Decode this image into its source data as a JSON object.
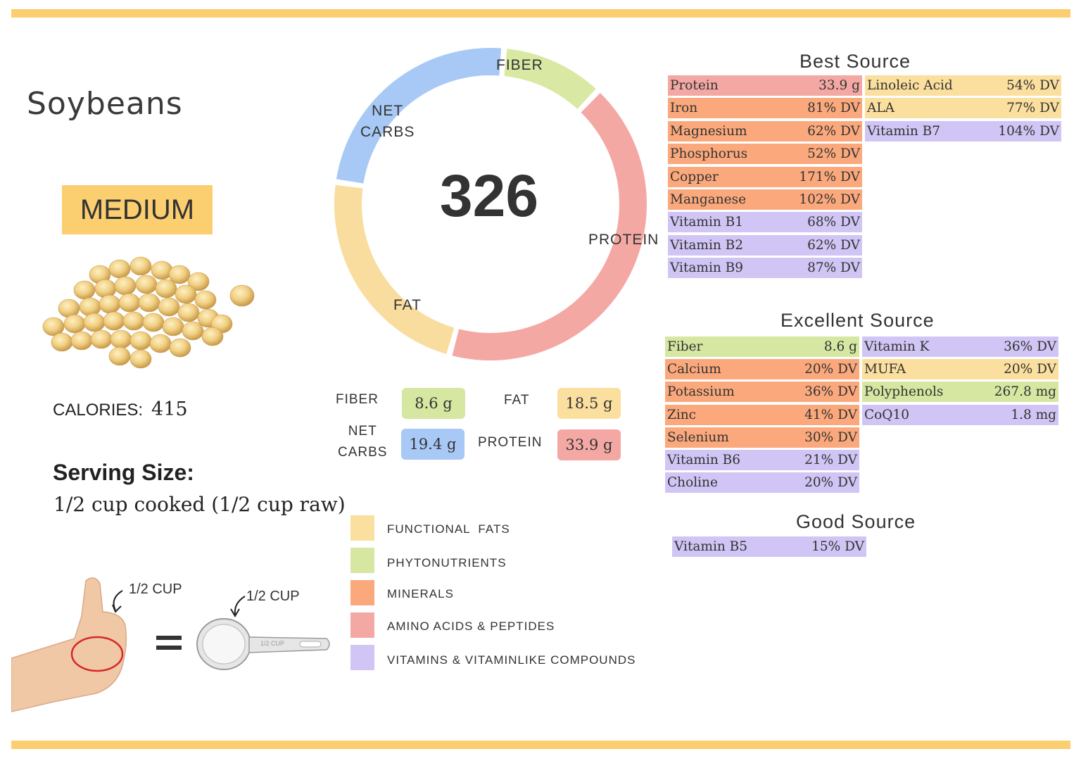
{
  "title": "Soybeans",
  "level_badge": "MEDIUM",
  "calories": {
    "label": "CALORIES:",
    "value": "415"
  },
  "serving": {
    "heading": "Serving Size:",
    "value": "1/2 cup cooked (1/2 cup raw)"
  },
  "hand_measure": {
    "hand_label": "1/2 CUP",
    "cup_label": "1/2 CUP",
    "cup_engraving": "1/2 CUP",
    "equals": "="
  },
  "donut": {
    "center_value": "326",
    "segments": [
      {
        "name": "FIBER",
        "label_lines": [
          "FIBER"
        ],
        "grams": 8.6,
        "color": "#d9e9a4"
      },
      {
        "name": "PROTEIN",
        "label_lines": [
          "PROTEIN"
        ],
        "grams": 33.9,
        "color": "#f4a8a4"
      },
      {
        "name": "FAT",
        "label_lines": [
          "FAT"
        ],
        "grams": 18.5,
        "color": "#f9dd9e"
      },
      {
        "name": "NET CARBS",
        "label_lines": [
          "NET",
          "CARBS"
        ],
        "grams": 19.4,
        "color": "#a8c9f6"
      }
    ]
  },
  "macros": {
    "fiber": {
      "label": "FIBER",
      "value": "8.6 g",
      "color": "#d6e7a2"
    },
    "fat": {
      "label": "FAT",
      "value": "18.5 g",
      "color": "#fbdf9e"
    },
    "net_carbs": {
      "label_line1": "NET",
      "label_line2": "CARBS",
      "value": "19.4 g",
      "color": "#a8c9f6"
    },
    "protein": {
      "label": "PROTEIN",
      "value": "33.9 g",
      "color": "#f4a8a4"
    }
  },
  "legend": [
    {
      "label": "FUNCTIONAL  FATS",
      "color": "#fbdf9e"
    },
    {
      "label": "PHYTONUTRIENTS",
      "color": "#d6e7a2"
    },
    {
      "label": "MINERALS",
      "color": "#fba97c"
    },
    {
      "label": "AMINO ACIDS & PEPTIDES",
      "color": "#f4a8a4"
    },
    {
      "label": "VITAMINS & VITAMINLIKE COMPOUNDS",
      "color": "#d0c5f4"
    }
  ],
  "best_source": {
    "heading": "Best Source",
    "col1": [
      {
        "name": "Protein",
        "value": "33.9 g",
        "category": "red"
      },
      {
        "name": "Iron",
        "value": "81% DV",
        "category": "orange"
      },
      {
        "name": "Magnesium",
        "value": "62% DV",
        "category": "orange"
      },
      {
        "name": "Phosphorus",
        "value": "52% DV",
        "category": "orange"
      },
      {
        "name": "Copper",
        "value": "171% DV",
        "category": "orange"
      },
      {
        "name": "Manganese",
        "value": "102% DV",
        "category": "orange"
      },
      {
        "name": "Vitamin B1",
        "value": "68% DV",
        "category": "purple"
      },
      {
        "name": "Vitamin B2",
        "value": "62% DV",
        "category": "purple"
      },
      {
        "name": "Vitamin B9",
        "value": "87% DV",
        "category": "purple"
      }
    ],
    "col2": [
      {
        "name": "Linoleic Acid",
        "value": "54% DV",
        "category": "yellow"
      },
      {
        "name": "ALA",
        "value": "77% DV",
        "category": "yellow"
      },
      {
        "name": "Vitamin B7",
        "value": "104% DV",
        "category": "purple"
      }
    ]
  },
  "excellent_source": {
    "heading": "Excellent Source",
    "col1": [
      {
        "name": "Fiber",
        "value": "8.6 g",
        "category": "green"
      },
      {
        "name": "Calcium",
        "value": "20% DV",
        "category": "orange"
      },
      {
        "name": "Potassium",
        "value": "36% DV",
        "category": "orange"
      },
      {
        "name": "Zinc",
        "value": "41% DV",
        "category": "orange"
      },
      {
        "name": "Selenium",
        "value": "30% DV",
        "category": "orange"
      },
      {
        "name": "Vitamin B6",
        "value": "21% DV",
        "category": "purple"
      },
      {
        "name": "Choline",
        "value": "20% DV",
        "category": "purple"
      }
    ],
    "col2": [
      {
        "name": "Vitamin K",
        "value": "36% DV",
        "category": "purple"
      },
      {
        "name": "MUFA",
        "value": "20% DV",
        "category": "yellow"
      },
      {
        "name": "Polyphenols",
        "value": "267.8 mg",
        "category": "green"
      },
      {
        "name": "CoQ10",
        "value": "1.8 mg",
        "category": "purple"
      }
    ]
  },
  "good_source": {
    "heading": "Good Source",
    "col1": [
      {
        "name": "Vitamin B5",
        "value": "15% DV",
        "category": "purple"
      }
    ]
  }
}
